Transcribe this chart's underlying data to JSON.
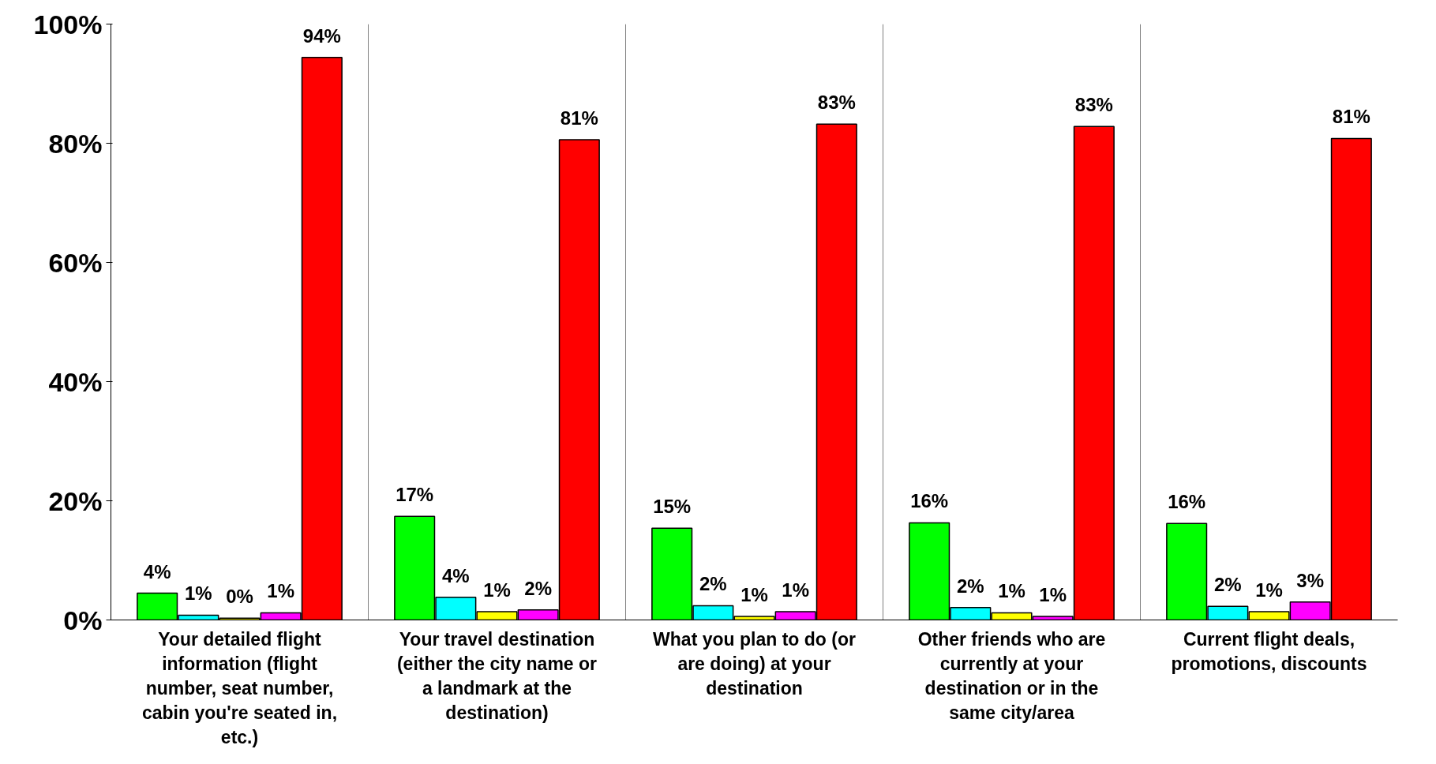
{
  "chart_data": {
    "type": "bar",
    "categories": [
      "Your detailed flight information (flight number, seat number, cabin you're seated in, etc.)",
      "Your travel destination (either the city name or a landmark at the destination)",
      "What you plan to do (or are doing) at your destination",
      "Other friends who are currently at your destination or in the same city/area",
      "Current flight deals, promotions, discounts"
    ],
    "series": [
      {
        "color": "#00ff00",
        "values": [
          4.5,
          17.4,
          15.4,
          16.3,
          16.2
        ],
        "value_labels": [
          "4%",
          "17%",
          "15%",
          "16%",
          "16%"
        ]
      },
      {
        "color": "#00ffff",
        "values": [
          0.8,
          3.8,
          2.4,
          2.1,
          2.3
        ],
        "value_labels": [
          "1%",
          "4%",
          "2%",
          "2%",
          "2%"
        ]
      },
      {
        "color": "#ffff00",
        "values": [
          0.3,
          1.4,
          0.6,
          1.2,
          1.4
        ],
        "value_labels": [
          "0%",
          "1%",
          "1%",
          "1%",
          "1%"
        ]
      },
      {
        "color": "#ff00ff",
        "values": [
          1.2,
          1.7,
          1.4,
          0.6,
          3.0
        ],
        "value_labels": [
          "1%",
          "2%",
          "1%",
          "1%",
          "3%"
        ]
      },
      {
        "color": "#ff0000",
        "values": [
          94.4,
          80.6,
          83.2,
          82.8,
          80.8
        ],
        "value_labels": [
          "94%",
          "81%",
          "83%",
          "83%",
          "81%"
        ]
      }
    ],
    "ylim": [
      0,
      100
    ],
    "yticks": [
      {
        "value": 0,
        "label": "0%"
      },
      {
        "value": 20,
        "label": "20%"
      },
      {
        "value": 40,
        "label": "40%"
      },
      {
        "value": 60,
        "label": "60%"
      },
      {
        "value": 80,
        "label": "80%"
      },
      {
        "value": 100,
        "label": "100%"
      }
    ],
    "grid": "x"
  }
}
